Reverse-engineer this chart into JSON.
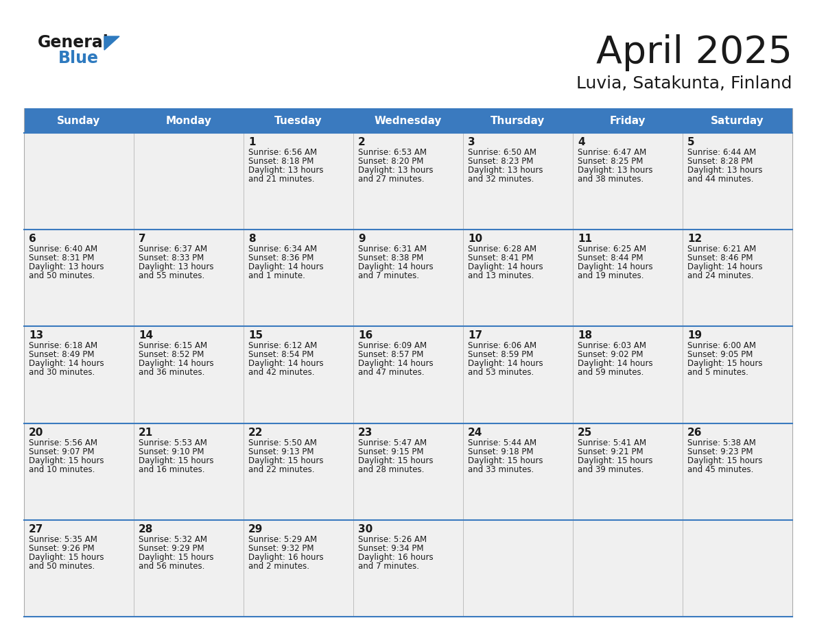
{
  "title": "April 2025",
  "subtitle": "Luvia, Satakunta, Finland",
  "header_bg_color": "#3a7abf",
  "header_text_color": "#ffffff",
  "cell_bg_color": "#f0f0f0",
  "border_color": "#3a7abf",
  "text_color": "#1a1a1a",
  "day_names": [
    "Sunday",
    "Monday",
    "Tuesday",
    "Wednesday",
    "Thursday",
    "Friday",
    "Saturday"
  ],
  "calendar": [
    [
      {
        "day": "",
        "sunrise": "",
        "sunset": "",
        "daylight": ""
      },
      {
        "day": "",
        "sunrise": "",
        "sunset": "",
        "daylight": ""
      },
      {
        "day": "1",
        "sunrise": "Sunrise: 6:56 AM",
        "sunset": "Sunset: 8:18 PM",
        "daylight": "Daylight: 13 hours\nand 21 minutes."
      },
      {
        "day": "2",
        "sunrise": "Sunrise: 6:53 AM",
        "sunset": "Sunset: 8:20 PM",
        "daylight": "Daylight: 13 hours\nand 27 minutes."
      },
      {
        "day": "3",
        "sunrise": "Sunrise: 6:50 AM",
        "sunset": "Sunset: 8:23 PM",
        "daylight": "Daylight: 13 hours\nand 32 minutes."
      },
      {
        "day": "4",
        "sunrise": "Sunrise: 6:47 AM",
        "sunset": "Sunset: 8:25 PM",
        "daylight": "Daylight: 13 hours\nand 38 minutes."
      },
      {
        "day": "5",
        "sunrise": "Sunrise: 6:44 AM",
        "sunset": "Sunset: 8:28 PM",
        "daylight": "Daylight: 13 hours\nand 44 minutes."
      }
    ],
    [
      {
        "day": "6",
        "sunrise": "Sunrise: 6:40 AM",
        "sunset": "Sunset: 8:31 PM",
        "daylight": "Daylight: 13 hours\nand 50 minutes."
      },
      {
        "day": "7",
        "sunrise": "Sunrise: 6:37 AM",
        "sunset": "Sunset: 8:33 PM",
        "daylight": "Daylight: 13 hours\nand 55 minutes."
      },
      {
        "day": "8",
        "sunrise": "Sunrise: 6:34 AM",
        "sunset": "Sunset: 8:36 PM",
        "daylight": "Daylight: 14 hours\nand 1 minute."
      },
      {
        "day": "9",
        "sunrise": "Sunrise: 6:31 AM",
        "sunset": "Sunset: 8:38 PM",
        "daylight": "Daylight: 14 hours\nand 7 minutes."
      },
      {
        "day": "10",
        "sunrise": "Sunrise: 6:28 AM",
        "sunset": "Sunset: 8:41 PM",
        "daylight": "Daylight: 14 hours\nand 13 minutes."
      },
      {
        "day": "11",
        "sunrise": "Sunrise: 6:25 AM",
        "sunset": "Sunset: 8:44 PM",
        "daylight": "Daylight: 14 hours\nand 19 minutes."
      },
      {
        "day": "12",
        "sunrise": "Sunrise: 6:21 AM",
        "sunset": "Sunset: 8:46 PM",
        "daylight": "Daylight: 14 hours\nand 24 minutes."
      }
    ],
    [
      {
        "day": "13",
        "sunrise": "Sunrise: 6:18 AM",
        "sunset": "Sunset: 8:49 PM",
        "daylight": "Daylight: 14 hours\nand 30 minutes."
      },
      {
        "day": "14",
        "sunrise": "Sunrise: 6:15 AM",
        "sunset": "Sunset: 8:52 PM",
        "daylight": "Daylight: 14 hours\nand 36 minutes."
      },
      {
        "day": "15",
        "sunrise": "Sunrise: 6:12 AM",
        "sunset": "Sunset: 8:54 PM",
        "daylight": "Daylight: 14 hours\nand 42 minutes."
      },
      {
        "day": "16",
        "sunrise": "Sunrise: 6:09 AM",
        "sunset": "Sunset: 8:57 PM",
        "daylight": "Daylight: 14 hours\nand 47 minutes."
      },
      {
        "day": "17",
        "sunrise": "Sunrise: 6:06 AM",
        "sunset": "Sunset: 8:59 PM",
        "daylight": "Daylight: 14 hours\nand 53 minutes."
      },
      {
        "day": "18",
        "sunrise": "Sunrise: 6:03 AM",
        "sunset": "Sunset: 9:02 PM",
        "daylight": "Daylight: 14 hours\nand 59 minutes."
      },
      {
        "day": "19",
        "sunrise": "Sunrise: 6:00 AM",
        "sunset": "Sunset: 9:05 PM",
        "daylight": "Daylight: 15 hours\nand 5 minutes."
      }
    ],
    [
      {
        "day": "20",
        "sunrise": "Sunrise: 5:56 AM",
        "sunset": "Sunset: 9:07 PM",
        "daylight": "Daylight: 15 hours\nand 10 minutes."
      },
      {
        "day": "21",
        "sunrise": "Sunrise: 5:53 AM",
        "sunset": "Sunset: 9:10 PM",
        "daylight": "Daylight: 15 hours\nand 16 minutes."
      },
      {
        "day": "22",
        "sunrise": "Sunrise: 5:50 AM",
        "sunset": "Sunset: 9:13 PM",
        "daylight": "Daylight: 15 hours\nand 22 minutes."
      },
      {
        "day": "23",
        "sunrise": "Sunrise: 5:47 AM",
        "sunset": "Sunset: 9:15 PM",
        "daylight": "Daylight: 15 hours\nand 28 minutes."
      },
      {
        "day": "24",
        "sunrise": "Sunrise: 5:44 AM",
        "sunset": "Sunset: 9:18 PM",
        "daylight": "Daylight: 15 hours\nand 33 minutes."
      },
      {
        "day": "25",
        "sunrise": "Sunrise: 5:41 AM",
        "sunset": "Sunset: 9:21 PM",
        "daylight": "Daylight: 15 hours\nand 39 minutes."
      },
      {
        "day": "26",
        "sunrise": "Sunrise: 5:38 AM",
        "sunset": "Sunset: 9:23 PM",
        "daylight": "Daylight: 15 hours\nand 45 minutes."
      }
    ],
    [
      {
        "day": "27",
        "sunrise": "Sunrise: 5:35 AM",
        "sunset": "Sunset: 9:26 PM",
        "daylight": "Daylight: 15 hours\nand 50 minutes."
      },
      {
        "day": "28",
        "sunrise": "Sunrise: 5:32 AM",
        "sunset": "Sunset: 9:29 PM",
        "daylight": "Daylight: 15 hours\nand 56 minutes."
      },
      {
        "day": "29",
        "sunrise": "Sunrise: 5:29 AM",
        "sunset": "Sunset: 9:32 PM",
        "daylight": "Daylight: 16 hours\nand 2 minutes."
      },
      {
        "day": "30",
        "sunrise": "Sunrise: 5:26 AM",
        "sunset": "Sunset: 9:34 PM",
        "daylight": "Daylight: 16 hours\nand 7 minutes."
      },
      {
        "day": "",
        "sunrise": "",
        "sunset": "",
        "daylight": ""
      },
      {
        "day": "",
        "sunrise": "",
        "sunset": "",
        "daylight": ""
      },
      {
        "day": "",
        "sunrise": "",
        "sunset": "",
        "daylight": ""
      }
    ]
  ],
  "logo_general_color": "#1a1a1a",
  "logo_blue_color": "#2e7abf",
  "logo_triangle_color": "#2e7abf",
  "title_fontsize": 40,
  "subtitle_fontsize": 18,
  "header_fontsize": 11,
  "day_num_fontsize": 11,
  "cell_text_fontsize": 8.5
}
